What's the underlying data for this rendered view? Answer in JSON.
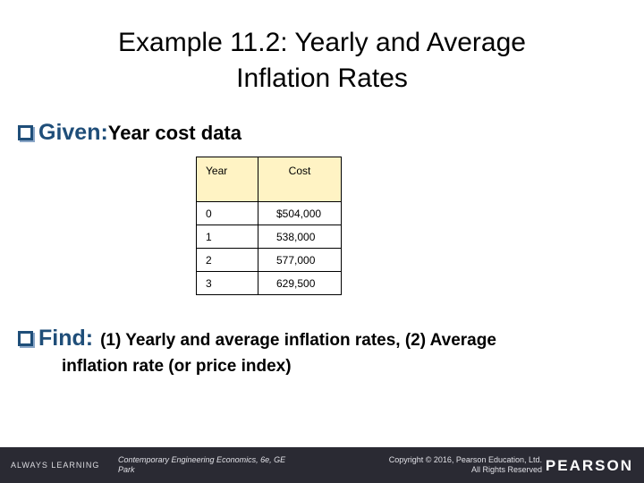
{
  "title": {
    "line1": "Example 11.2: Yearly and Average",
    "line2": "Inflation Rates"
  },
  "given": {
    "label": "Given:",
    "text": "Year cost data"
  },
  "table": {
    "headers": [
      "Year",
      "Cost"
    ],
    "rows": [
      {
        "year": "0",
        "cost": "$504,000"
      },
      {
        "year": "1",
        "cost": "538,000"
      },
      {
        "year": "2",
        "cost": "577,000"
      },
      {
        "year": "3",
        "cost": "629,500"
      }
    ],
    "header_fill": "#fff3c4"
  },
  "find": {
    "label": "Find:",
    "text": "(1) Yearly and average inflation rates, (2) Average",
    "text_cont": "inflation rate (or price index)"
  },
  "footer": {
    "always_learning": "ALWAYS LEARNING",
    "book_line1": "Contemporary Engineering Economics, 6e, GE",
    "book_line2": "Park",
    "copyright_line1": "Copyright © 2016, Pearson Education, Ltd.",
    "copyright_line2": "All Rights Reserved",
    "brand": "PEARSON"
  },
  "colors": {
    "accent": "#1f4e79",
    "footer_bg": "#2a2a33"
  }
}
